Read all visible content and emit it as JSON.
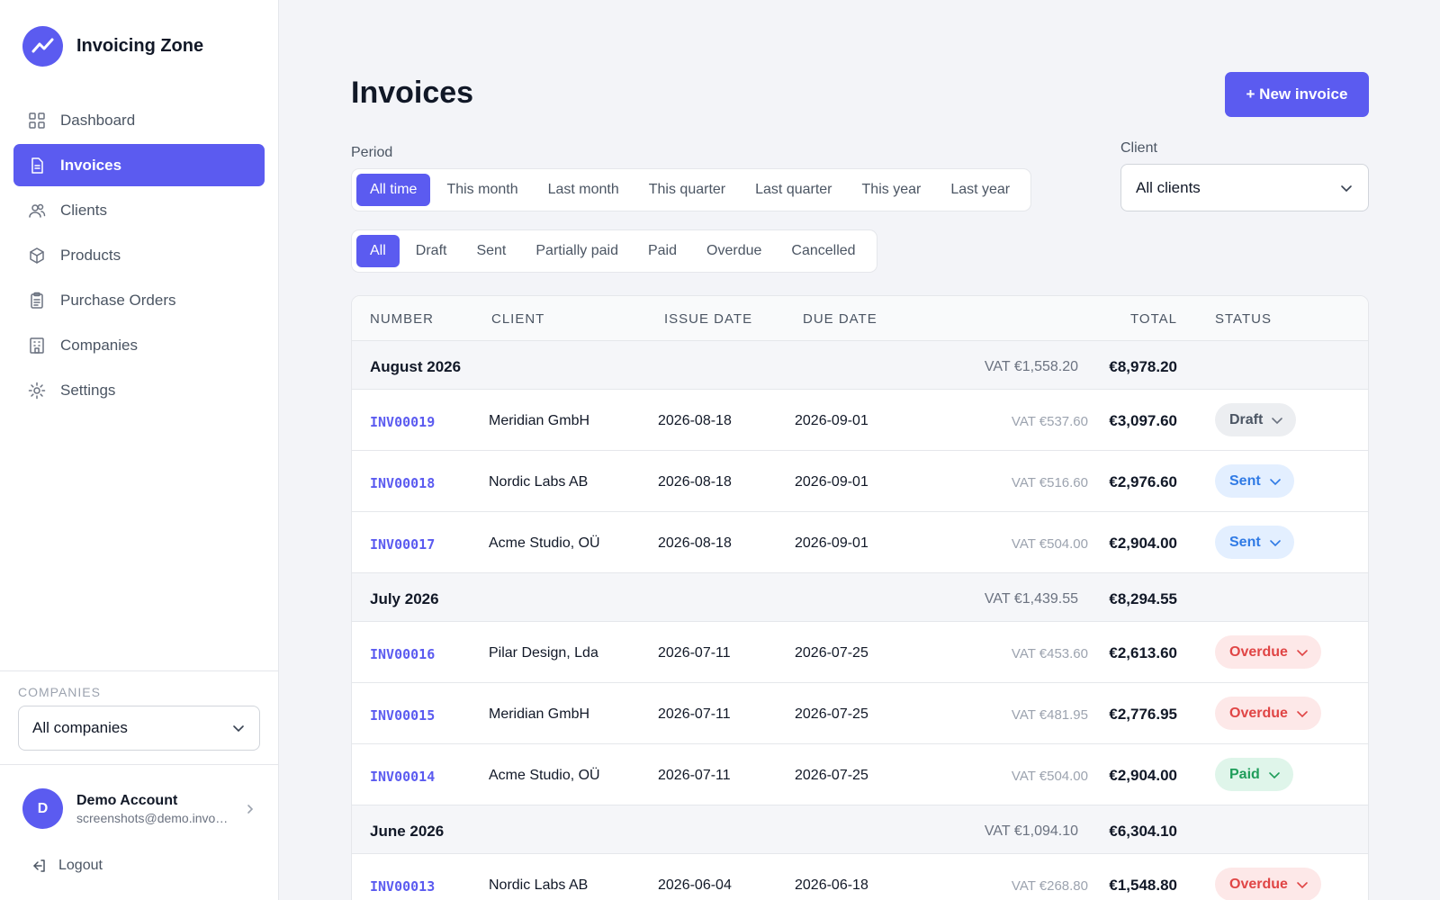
{
  "brand": {
    "name": "Invoicing Zone"
  },
  "sidebar": {
    "items": [
      {
        "label": "Dashboard",
        "icon": "grid-icon",
        "active": false
      },
      {
        "label": "Invoices",
        "icon": "document-icon",
        "active": true
      },
      {
        "label": "Clients",
        "icon": "users-icon",
        "active": false
      },
      {
        "label": "Products",
        "icon": "box-icon",
        "active": false
      },
      {
        "label": "Purchase Orders",
        "icon": "clipboard-icon",
        "active": false
      },
      {
        "label": "Companies",
        "icon": "building-icon",
        "active": false
      },
      {
        "label": "Settings",
        "icon": "sun-gear-icon",
        "active": false
      }
    ],
    "companies_label": "COMPANIES",
    "companies_value": "All companies",
    "account": {
      "initial": "D",
      "name": "Demo Account",
      "email": "screenshots@demo.invoicing.zone"
    },
    "logout_label": "Logout"
  },
  "header": {
    "title": "Invoices",
    "new_button": "+ New invoice"
  },
  "filters": {
    "period_label": "Period",
    "periods": [
      "All time",
      "This month",
      "Last month",
      "This quarter",
      "Last quarter",
      "This year",
      "Last year"
    ],
    "period_active": 0,
    "statuses": [
      "All",
      "Draft",
      "Sent",
      "Partially paid",
      "Paid",
      "Overdue",
      "Cancelled"
    ],
    "status_active": 0,
    "client_label": "Client",
    "client_value": "All clients"
  },
  "table": {
    "columns": {
      "number": "NUMBER",
      "client": "CLIENT",
      "issue": "ISSUE DATE",
      "due": "DUE DATE",
      "total": "TOTAL",
      "status": "STATUS"
    },
    "groups": [
      {
        "month": "August 2026",
        "vat": "VAT €1,558.20",
        "total": "€8,978.20",
        "rows": [
          {
            "number": "INV00019",
            "client": "Meridian GmbH",
            "issue": "2026-08-18",
            "due": "2026-09-01",
            "vat": "VAT €537.60",
            "total": "€3,097.60",
            "status": "Draft",
            "status_kind": "draft"
          },
          {
            "number": "INV00018",
            "client": "Nordic Labs AB",
            "issue": "2026-08-18",
            "due": "2026-09-01",
            "vat": "VAT €516.60",
            "total": "€2,976.60",
            "status": "Sent",
            "status_kind": "sent"
          },
          {
            "number": "INV00017",
            "client": "Acme Studio, OÜ",
            "issue": "2026-08-18",
            "due": "2026-09-01",
            "vat": "VAT €504.00",
            "total": "€2,904.00",
            "status": "Sent",
            "status_kind": "sent"
          }
        ]
      },
      {
        "month": "July 2026",
        "vat": "VAT €1,439.55",
        "total": "€8,294.55",
        "rows": [
          {
            "number": "INV00016",
            "client": "Pilar Design, Lda",
            "issue": "2026-07-11",
            "due": "2026-07-25",
            "vat": "VAT €453.60",
            "total": "€2,613.60",
            "status": "Overdue",
            "status_kind": "overdue"
          },
          {
            "number": "INV00015",
            "client": "Meridian GmbH",
            "issue": "2026-07-11",
            "due": "2026-07-25",
            "vat": "VAT €481.95",
            "total": "€2,776.95",
            "status": "Overdue",
            "status_kind": "overdue"
          },
          {
            "number": "INV00014",
            "client": "Acme Studio, OÜ",
            "issue": "2026-07-11",
            "due": "2026-07-25",
            "vat": "VAT €504.00",
            "total": "€2,904.00",
            "status": "Paid",
            "status_kind": "paid"
          }
        ]
      },
      {
        "month": "June 2026",
        "vat": "VAT €1,094.10",
        "total": "€6,304.10",
        "rows": [
          {
            "number": "INV00013",
            "client": "Nordic Labs AB",
            "issue": "2026-06-04",
            "due": "2026-06-18",
            "vat": "VAT €268.80",
            "total": "€1,548.80",
            "status": "Overdue",
            "status_kind": "overdue"
          }
        ]
      }
    ]
  },
  "colors": {
    "accent": "#5b5bf0",
    "draft": "#4b5563",
    "sent": "#2f7ae5",
    "overdue": "#e04545",
    "paid": "#1f9d5a"
  }
}
